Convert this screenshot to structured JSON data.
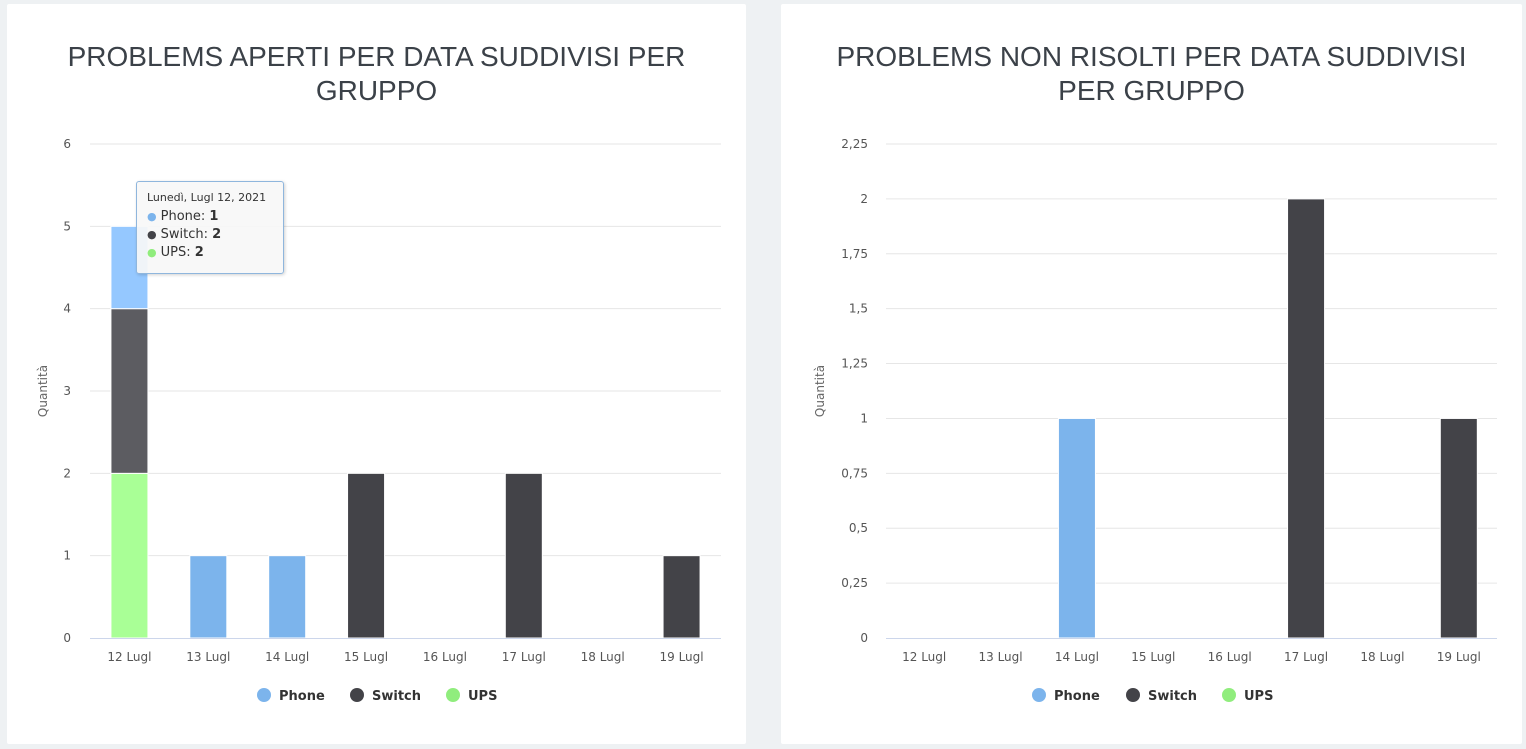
{
  "colors": {
    "Phone": "#7cb4ec",
    "Switch": "#434348",
    "UPS": "#90ed7d",
    "grid": "#e6e6e6",
    "axis": "#ccd6eb"
  },
  "charts": [
    {
      "title": "PROBLEMS APERTI PER DATA SUDDIVISI PER GRUPPO",
      "ylabel": "Quantità",
      "y_tick_labels": [
        "0",
        "1",
        "2",
        "3",
        "4",
        "5",
        "6"
      ],
      "legend": [
        "Phone",
        "Switch",
        "UPS"
      ]
    },
    {
      "title": "PROBLEMS NON RISOLTI PER DATA SUDDIVISI PER GRUPPO",
      "ylabel": "Quantità",
      "y_tick_labels": [
        "0",
        "0,25",
        "0,5",
        "0,75",
        "1",
        "1,25",
        "1,5",
        "1,75",
        "2",
        "2,25"
      ],
      "legend": [
        "Phone",
        "Switch",
        "UPS"
      ]
    }
  ],
  "tooltip": {
    "header": "Lunedì, Lugl 12, 2021",
    "rows": [
      {
        "name": "Phone",
        "value": "1"
      },
      {
        "name": "Switch",
        "value": "2"
      },
      {
        "name": "UPS",
        "value": "2"
      }
    ]
  },
  "chart_data": [
    {
      "type": "bar",
      "stacked": true,
      "title": "PROBLEMS APERTI PER DATA SUDDIVISI PER GRUPPO",
      "xlabel": "",
      "ylabel": "Quantità",
      "ylim": [
        0,
        6
      ],
      "categories": [
        "12 Lugl",
        "13 Lugl",
        "14 Lugl",
        "15 Lugl",
        "16 Lugl",
        "17 Lugl",
        "18 Lugl",
        "19 Lugl"
      ],
      "series": [
        {
          "name": "Phone",
          "values": [
            1,
            1,
            1,
            0,
            0,
            0,
            0,
            0
          ]
        },
        {
          "name": "Switch",
          "values": [
            2,
            0,
            0,
            2,
            0,
            2,
            0,
            1
          ]
        },
        {
          "name": "UPS",
          "values": [
            2,
            0,
            0,
            0,
            0,
            0,
            0,
            0
          ]
        }
      ],
      "legend_position": "bottom-center",
      "grid": true
    },
    {
      "type": "bar",
      "stacked": true,
      "title": "PROBLEMS NON RISOLTI PER DATA SUDDIVISI PER GRUPPO",
      "xlabel": "",
      "ylabel": "Quantità",
      "ylim": [
        0,
        2.25
      ],
      "categories": [
        "12 Lugl",
        "13 Lugl",
        "14 Lugl",
        "15 Lugl",
        "16 Lugl",
        "17 Lugl",
        "18 Lugl",
        "19 Lugl"
      ],
      "series": [
        {
          "name": "Phone",
          "values": [
            0,
            0,
            1,
            0,
            0,
            0,
            0,
            0
          ]
        },
        {
          "name": "Switch",
          "values": [
            0,
            0,
            0,
            0,
            0,
            2,
            0,
            1
          ]
        },
        {
          "name": "UPS",
          "values": [
            0,
            0,
            0,
            0,
            0,
            0,
            0,
            0
          ]
        }
      ],
      "legend_position": "bottom-center",
      "grid": true
    }
  ]
}
